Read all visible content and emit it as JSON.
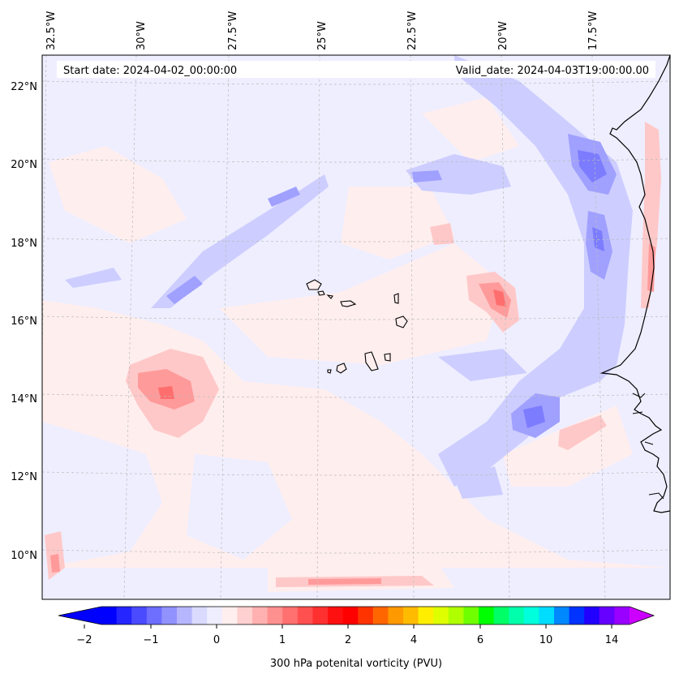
{
  "header": {
    "start_date": "Start date: 2024-04-02_00:00:00",
    "valid_date": "Valid_date: 2024-04-03T19:00:00.00"
  },
  "map": {
    "lon_labels": [
      "32.5°W",
      "30°W",
      "27.5°W",
      "25°W",
      "22.5°W",
      "20°W",
      "17.5°W"
    ],
    "lat_labels": [
      "22°N",
      "20°N",
      "18°N",
      "16°N",
      "14°N",
      "12°N",
      "10°N"
    ]
  },
  "colorbar": {
    "ticks": [
      "−2",
      "−1",
      "0",
      "1",
      "2",
      "4",
      "6",
      "10",
      "14"
    ],
    "label": "300 hPa potenital vorticity (PVU)",
    "colors": [
      "#0000ff",
      "#2525ff",
      "#4a4aff",
      "#6e6eff",
      "#9292ff",
      "#b6b6ff",
      "#dadaff",
      "#eeeeff",
      "#ffeeee",
      "#ffd0d0",
      "#ffb0b0",
      "#ff9090",
      "#ff7070",
      "#ff5050",
      "#ff3030",
      "#ff1010",
      "#ff0000",
      "#ff3300",
      "#ff6600",
      "#ff9900",
      "#ffbb00",
      "#ffee00",
      "#ddff00",
      "#b0ff00",
      "#70ff00",
      "#00ff00",
      "#00ff66",
      "#00ffaa",
      "#00ffdd",
      "#00ddff",
      "#0088ff",
      "#0033ff",
      "#2200ff",
      "#6600ff",
      "#9900ff"
    ],
    "under_color": "#0000ff",
    "over_color": "#cc00ff"
  }
}
